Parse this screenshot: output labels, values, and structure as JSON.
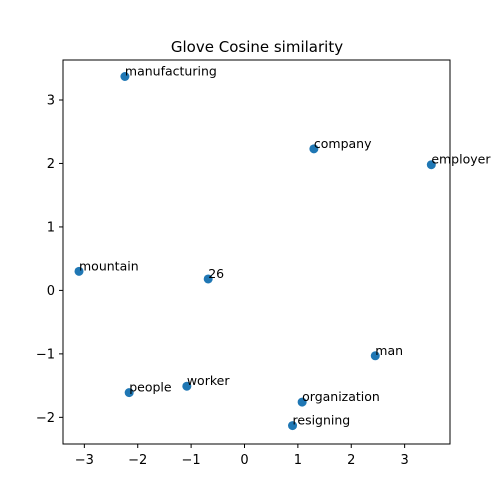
{
  "chart_data": {
    "type": "scatter",
    "title": "Glove Cosine similarity",
    "xlabel": "",
    "ylabel": "",
    "xlim": [
      -3.4,
      3.85
    ],
    "ylim": [
      -2.42,
      3.63
    ],
    "xticks": [
      -3,
      -2,
      -1,
      0,
      1,
      2,
      3
    ],
    "yticks": [
      -2,
      -1,
      0,
      1,
      2,
      3
    ],
    "grid": false,
    "marker_color": "#1f77b4",
    "points": [
      {
        "label": "manufacturing",
        "x": -2.24,
        "y": 3.37
      },
      {
        "label": "company",
        "x": 1.3,
        "y": 2.23
      },
      {
        "label": "employer",
        "x": 3.5,
        "y": 1.98
      },
      {
        "label": "mountain",
        "x": -3.1,
        "y": 0.3
      },
      {
        "label": "26",
        "x": -0.68,
        "y": 0.18
      },
      {
        "label": "man",
        "x": 2.45,
        "y": -1.03
      },
      {
        "label": "worker",
        "x": -1.08,
        "y": -1.51
      },
      {
        "label": "people",
        "x": -2.16,
        "y": -1.61
      },
      {
        "label": "organization",
        "x": 1.08,
        "y": -1.76
      },
      {
        "label": "resigning",
        "x": 0.9,
        "y": -2.13
      }
    ]
  }
}
